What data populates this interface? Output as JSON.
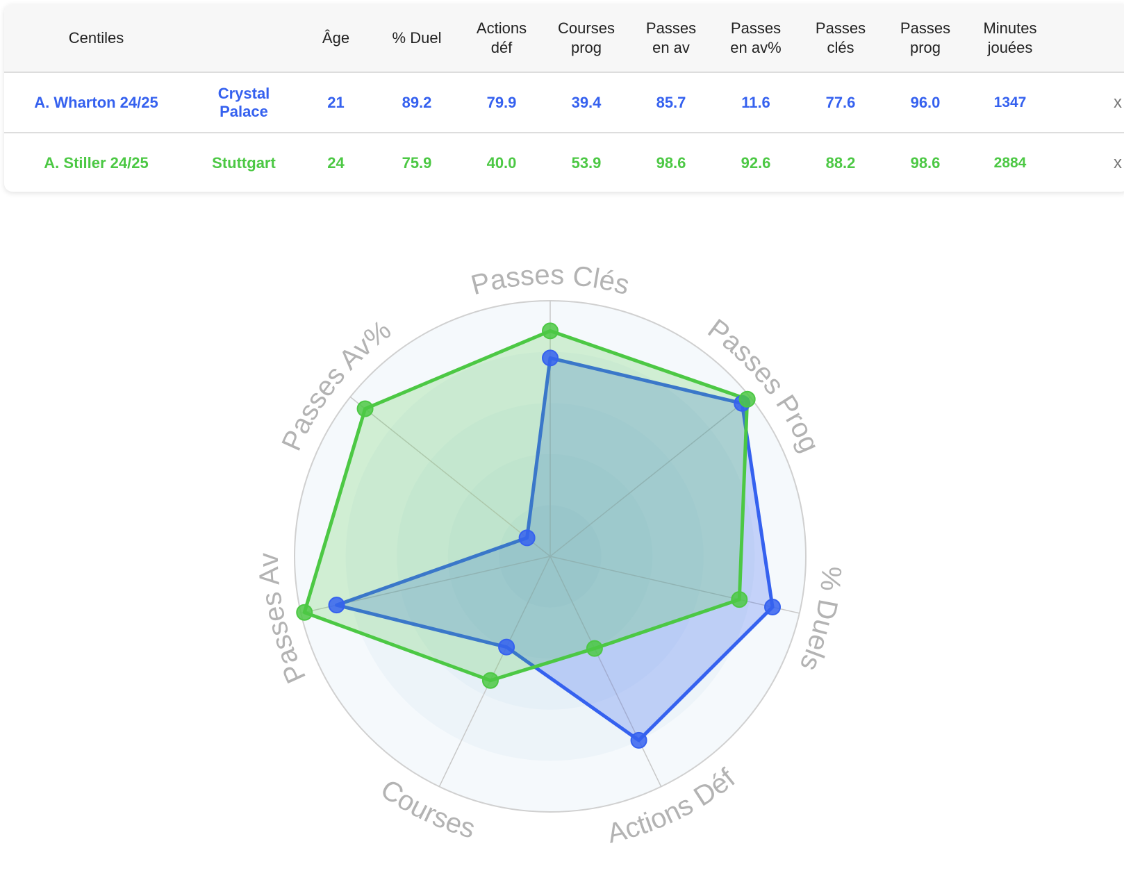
{
  "table": {
    "headers": [
      "Centiles",
      "",
      "Âge",
      "% Duel",
      "Actions déf",
      "Courses prog",
      "Passes en av",
      "Passes en av%",
      "Passes clés",
      "Passes prog",
      "Minutes jouées"
    ],
    "header_lines": [
      [
        "Centiles"
      ],
      [
        ""
      ],
      [
        "Âge"
      ],
      [
        "% Duel"
      ],
      [
        "Actions",
        "déf"
      ],
      [
        "Courses",
        "prog"
      ],
      [
        "Passes",
        "en av"
      ],
      [
        "Passes",
        "en av%"
      ],
      [
        "Passes",
        "clés"
      ],
      [
        "Passes",
        "prog"
      ],
      [
        "Minutes",
        "jouées"
      ]
    ],
    "remove_label": "x",
    "rows": [
      {
        "player": "A. Wharton 24/25",
        "club_lines": [
          "Crystal",
          "Palace"
        ],
        "color": "#3561ef",
        "values": [
          "21",
          "89.2",
          "79.9",
          "39.4",
          "85.7",
          "11.6",
          "77.6",
          "96.0",
          "1347"
        ]
      },
      {
        "player": "A. Stiller 24/25",
        "club_lines": [
          "Stuttgart"
        ],
        "color": "#4cc844",
        "values": [
          "24",
          "75.9",
          "40.0",
          "53.9",
          "98.6",
          "92.6",
          "88.2",
          "98.6",
          "2884"
        ]
      }
    ]
  },
  "chart_data": {
    "type": "radar",
    "axes": [
      "Passes Clés",
      "Passes Prog",
      "% Duels",
      "Actions Déf",
      "Courses",
      "Passes Av",
      "Passes Av%"
    ],
    "range": [
      0,
      100
    ],
    "series": [
      {
        "name": "A. Wharton 24/25",
        "color": "#3561ef",
        "values": [
          77.6,
          96.0,
          89.2,
          79.9,
          39.4,
          85.7,
          11.6
        ]
      },
      {
        "name": "A. Stiller 24/25",
        "color": "#4cc844",
        "values": [
          88.2,
          98.6,
          75.9,
          40.0,
          53.9,
          98.6,
          92.6
        ]
      }
    ],
    "grid": true,
    "axis_label_color": "#b3b3b3"
  }
}
